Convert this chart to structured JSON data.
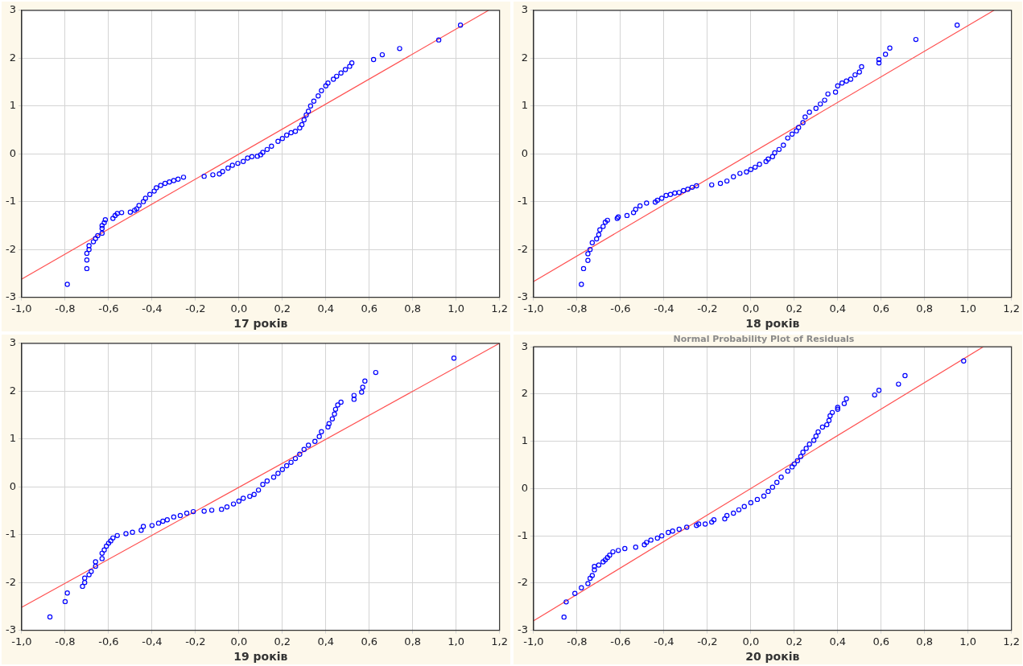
{
  "chart_data": [
    {
      "type": "scatter",
      "xlabel": "17 років",
      "xlim": [
        -1.0,
        1.2
      ],
      "xticks": [
        {
          "value": -1.0,
          "label": "-1,0"
        },
        {
          "value": -0.8,
          "label": "-0,8"
        },
        {
          "value": -0.6,
          "label": "-0,6"
        },
        {
          "value": -0.4,
          "label": "-0,4"
        },
        {
          "value": -0.2,
          "label": "-0,2"
        },
        {
          "value": 0,
          "label": "0,0"
        },
        {
          "value": 0.2,
          "label": "0,2"
        },
        {
          "value": 0.4,
          "label": "0,4"
        },
        {
          "value": 0.6,
          "label": "0,6"
        },
        {
          "value": 0.8,
          "label": "0,8"
        },
        {
          "value": 1.0,
          "label": "1,0"
        },
        {
          "value": 1.2,
          "label": "1,2"
        }
      ],
      "ylim": [
        -3,
        3
      ],
      "yticks": [
        -3,
        -2,
        -1,
        0,
        1,
        2,
        3
      ],
      "grid": true,
      "marker": "circle",
      "series": [
        {
          "type": "scatter",
          "color": "#0000ff",
          "x": [
            -0.79,
            -0.7,
            -0.7,
            -0.7,
            -0.69,
            -0.69,
            -0.67,
            -0.66,
            -0.65,
            -0.63,
            -0.63,
            -0.63,
            -0.62,
            -0.615,
            -0.58,
            -0.57,
            -0.56,
            -0.54,
            -0.5,
            -0.48,
            -0.47,
            -0.46,
            -0.44,
            -0.43,
            -0.41,
            -0.39,
            -0.38,
            -0.36,
            -0.34,
            -0.32,
            -0.3,
            -0.28,
            -0.255,
            -0.16,
            -0.12,
            -0.09,
            -0.075,
            -0.05,
            -0.03,
            -0.005,
            0.02,
            0.04,
            0.06,
            0.085,
            0.1,
            0.11,
            0.13,
            0.15,
            0.18,
            0.2,
            0.22,
            0.24,
            0.26,
            0.28,
            0.29,
            0.3,
            0.31,
            0.32,
            0.33,
            0.345,
            0.365,
            0.38,
            0.4,
            0.41,
            0.435,
            0.45,
            0.47,
            0.49,
            0.51,
            0.52,
            0.62,
            0.66,
            0.74,
            0.92,
            1.02
          ],
          "values": [
            -2.73,
            -2.4,
            -2.22,
            -2.08,
            -2.0,
            -1.92,
            -1.84,
            -1.77,
            -1.71,
            -1.66,
            -1.56,
            -1.5,
            -1.44,
            -1.38,
            -1.35,
            -1.29,
            -1.25,
            -1.23,
            -1.22,
            -1.18,
            -1.15,
            -1.08,
            -1.0,
            -0.93,
            -0.85,
            -0.78,
            -0.71,
            -0.66,
            -0.62,
            -0.59,
            -0.56,
            -0.53,
            -0.49,
            -0.47,
            -0.44,
            -0.42,
            -0.37,
            -0.3,
            -0.24,
            -0.2,
            -0.16,
            -0.09,
            -0.06,
            -0.05,
            -0.02,
            0.03,
            0.09,
            0.16,
            0.26,
            0.32,
            0.39,
            0.44,
            0.47,
            0.54,
            0.61,
            0.71,
            0.81,
            0.89,
            1.0,
            1.1,
            1.21,
            1.32,
            1.42,
            1.48,
            1.56,
            1.62,
            1.69,
            1.76,
            1.83,
            1.9,
            1.97,
            2.07,
            2.2,
            2.38,
            2.69
          ]
        },
        {
          "type": "line",
          "marker": "none",
          "color": "#ff5050",
          "x": [
            -1.0,
            1.15
          ],
          "values": [
            -2.62,
            3.0
          ]
        }
      ]
    },
    {
      "type": "scatter",
      "xlabel": "18 років",
      "xlim": [
        -1.0,
        1.2
      ],
      "xticks": [
        {
          "value": -1.0,
          "label": "-1,0"
        },
        {
          "value": -0.8,
          "label": "-0,8"
        },
        {
          "value": -0.6,
          "label": "-0,6"
        },
        {
          "value": -0.4,
          "label": "-0,4"
        },
        {
          "value": -0.2,
          "label": "-0,2"
        },
        {
          "value": 0,
          "label": "0,0"
        },
        {
          "value": 0.2,
          "label": "0,2"
        },
        {
          "value": 0.4,
          "label": "0,4"
        },
        {
          "value": 0.6,
          "label": "0,6"
        },
        {
          "value": 0.8,
          "label": "0,8"
        },
        {
          "value": 1.0,
          "label": "1,0"
        },
        {
          "value": 1.2,
          "label": "1,2"
        }
      ],
      "ylim": [
        -3,
        3
      ],
      "yticks": [
        -3,
        -2,
        -1,
        0,
        1,
        2,
        3
      ],
      "grid": true,
      "marker": "circle",
      "series": [
        {
          "type": "scatter",
          "color": "#0000ff",
          "x": [
            -0.78,
            -0.77,
            -0.75,
            -0.75,
            -0.74,
            -0.73,
            -0.71,
            -0.7,
            -0.695,
            -0.68,
            -0.67,
            -0.66,
            -0.615,
            -0.61,
            -0.57,
            -0.54,
            -0.53,
            -0.51,
            -0.48,
            -0.44,
            -0.43,
            -0.41,
            -0.39,
            -0.37,
            -0.35,
            -0.33,
            -0.31,
            -0.29,
            -0.27,
            -0.25,
            -0.18,
            -0.14,
            -0.11,
            -0.08,
            -0.05,
            -0.02,
            0.0,
            0.02,
            0.04,
            0.07,
            0.08,
            0.1,
            0.11,
            0.13,
            0.15,
            0.17,
            0.19,
            0.21,
            0.22,
            0.24,
            0.25,
            0.27,
            0.3,
            0.32,
            0.34,
            0.355,
            0.39,
            0.4,
            0.42,
            0.44,
            0.46,
            0.48,
            0.5,
            0.51,
            0.59,
            0.59,
            0.62,
            0.64,
            0.76,
            0.95
          ],
          "values": [
            -2.73,
            -2.4,
            -2.23,
            -2.09,
            -2.0,
            -1.86,
            -1.78,
            -1.69,
            -1.59,
            -1.52,
            -1.43,
            -1.39,
            -1.35,
            -1.32,
            -1.29,
            -1.23,
            -1.16,
            -1.09,
            -1.03,
            -1.01,
            -0.97,
            -0.93,
            -0.87,
            -0.85,
            -0.82,
            -0.81,
            -0.77,
            -0.74,
            -0.7,
            -0.67,
            -0.65,
            -0.62,
            -0.57,
            -0.48,
            -0.41,
            -0.38,
            -0.33,
            -0.28,
            -0.22,
            -0.16,
            -0.11,
            -0.06,
            0.02,
            0.09,
            0.18,
            0.33,
            0.41,
            0.48,
            0.55,
            0.65,
            0.77,
            0.87,
            0.95,
            1.04,
            1.12,
            1.25,
            1.29,
            1.42,
            1.48,
            1.52,
            1.56,
            1.65,
            1.71,
            1.82,
            1.9,
            1.97,
            2.08,
            2.21,
            2.39,
            2.69
          ]
        },
        {
          "type": "line",
          "marker": "none",
          "color": "#ff5050",
          "x": [
            -1.0,
            1.12
          ],
          "values": [
            -2.67,
            3.0
          ]
        }
      ]
    },
    {
      "type": "scatter",
      "xlabel": "19 років",
      "xlim": [
        -1.0,
        1.2
      ],
      "xticks": [
        {
          "value": -1.0,
          "label": "-1,0"
        },
        {
          "value": -0.8,
          "label": "-0,8"
        },
        {
          "value": -0.6,
          "label": "-0,6"
        },
        {
          "value": -0.4,
          "label": "-0,4"
        },
        {
          "value": -0.2,
          "label": "-0,2"
        },
        {
          "value": 0,
          "label": "0,0"
        },
        {
          "value": 0.2,
          "label": "0,2"
        },
        {
          "value": 0.4,
          "label": "0,4"
        },
        {
          "value": 0.6,
          "label": "0,6"
        },
        {
          "value": 0.8,
          "label": "0,8"
        },
        {
          "value": 1.0,
          "label": "1,0"
        },
        {
          "value": 1.2,
          "label": "1,2"
        }
      ],
      "ylim": [
        -3,
        3
      ],
      "yticks": [
        -3,
        -2,
        -1,
        0,
        1,
        2,
        3
      ],
      "grid": true,
      "marker": "circle",
      "series": [
        {
          "type": "scatter",
          "color": "#0000ff",
          "x": [
            -0.87,
            -0.8,
            -0.79,
            -0.72,
            -0.71,
            -0.71,
            -0.69,
            -0.68,
            -0.66,
            -0.66,
            -0.63,
            -0.63,
            -0.62,
            -0.61,
            -0.6,
            -0.59,
            -0.58,
            -0.56,
            -0.52,
            -0.49,
            -0.45,
            -0.44,
            -0.4,
            -0.37,
            -0.35,
            -0.33,
            -0.3,
            -0.27,
            -0.24,
            -0.21,
            -0.16,
            -0.125,
            -0.08,
            -0.055,
            -0.025,
            0.0,
            0.02,
            0.05,
            0.07,
            0.09,
            0.11,
            0.13,
            0.16,
            0.18,
            0.2,
            0.22,
            0.24,
            0.26,
            0.28,
            0.3,
            0.32,
            0.35,
            0.37,
            0.38,
            0.41,
            0.415,
            0.43,
            0.44,
            0.445,
            0.455,
            0.47,
            0.53,
            0.53,
            0.565,
            0.57,
            0.58,
            0.63,
            0.99
          ],
          "values": [
            -2.72,
            -2.4,
            -2.22,
            -2.08,
            -2.0,
            -1.91,
            -1.84,
            -1.77,
            -1.66,
            -1.57,
            -1.5,
            -1.39,
            -1.32,
            -1.24,
            -1.18,
            -1.13,
            -1.07,
            -1.02,
            -0.98,
            -0.95,
            -0.91,
            -0.83,
            -0.81,
            -0.76,
            -0.72,
            -0.69,
            -0.63,
            -0.6,
            -0.55,
            -0.52,
            -0.51,
            -0.49,
            -0.47,
            -0.42,
            -0.36,
            -0.3,
            -0.24,
            -0.2,
            -0.16,
            -0.07,
            0.05,
            0.12,
            0.2,
            0.28,
            0.36,
            0.44,
            0.51,
            0.59,
            0.68,
            0.78,
            0.87,
            0.95,
            1.05,
            1.15,
            1.25,
            1.32,
            1.42,
            1.52,
            1.62,
            1.71,
            1.77,
            1.83,
            1.91,
            1.98,
            2.08,
            2.21,
            2.39,
            2.69
          ]
        },
        {
          "type": "line",
          "marker": "none",
          "color": "#ff5050",
          "x": [
            -1.0,
            1.2
          ],
          "values": [
            -2.52,
            3.0
          ]
        }
      ]
    },
    {
      "type": "scatter",
      "title": "Normal Probability Plot of Residuals",
      "xlabel": "20 років",
      "xlim": [
        -1.0,
        1.2
      ],
      "xticks": [
        {
          "value": -1.0,
          "label": "-1,0"
        },
        {
          "value": -0.8,
          "label": "-0,8"
        },
        {
          "value": -0.6,
          "label": "-0,6"
        },
        {
          "value": -0.4,
          "label": "-0,4"
        },
        {
          "value": -0.2,
          "label": "-0,2"
        },
        {
          "value": 0,
          "label": "0,0"
        },
        {
          "value": 0.2,
          "label": "0,2"
        },
        {
          "value": 0.4,
          "label": "0,4"
        },
        {
          "value": 0.6,
          "label": "0,6"
        },
        {
          "value": 0.8,
          "label": "0,8"
        },
        {
          "value": 1.0,
          "label": "1,0"
        },
        {
          "value": 1.2,
          "label": "1,2"
        }
      ],
      "ylim": [
        -3,
        3
      ],
      "yticks": [
        -3,
        -2,
        -1,
        0,
        1,
        2,
        3
      ],
      "grid": true,
      "marker": "circle",
      "series": [
        {
          "type": "scatter",
          "color": "#0000ff",
          "x": [
            -0.86,
            -0.85,
            -0.81,
            -0.78,
            -0.75,
            -0.74,
            -0.73,
            -0.72,
            -0.72,
            -0.7,
            -0.68,
            -0.67,
            -0.66,
            -0.65,
            -0.635,
            -0.61,
            -0.58,
            -0.53,
            -0.49,
            -0.48,
            -0.46,
            -0.43,
            -0.41,
            -0.38,
            -0.36,
            -0.33,
            -0.295,
            -0.25,
            -0.24,
            -0.21,
            -0.18,
            -0.17,
            -0.12,
            -0.11,
            -0.08,
            -0.055,
            -0.03,
            0.0,
            0.03,
            0.06,
            0.08,
            0.1,
            0.12,
            0.14,
            0.17,
            0.19,
            0.2,
            0.215,
            0.23,
            0.24,
            0.255,
            0.27,
            0.29,
            0.3,
            0.31,
            0.33,
            0.35,
            0.36,
            0.365,
            0.375,
            0.4,
            0.4,
            0.43,
            0.44,
            0.57,
            0.59,
            0.68,
            0.71,
            0.98
          ],
          "values": [
            -2.72,
            -2.4,
            -2.22,
            -2.1,
            -2.01,
            -1.9,
            -1.84,
            -1.72,
            -1.65,
            -1.62,
            -1.55,
            -1.51,
            -1.46,
            -1.41,
            -1.34,
            -1.31,
            -1.27,
            -1.24,
            -1.19,
            -1.14,
            -1.09,
            -1.05,
            -1.0,
            -0.93,
            -0.9,
            -0.86,
            -0.82,
            -0.78,
            -0.75,
            -0.75,
            -0.71,
            -0.66,
            -0.64,
            -0.57,
            -0.52,
            -0.45,
            -0.38,
            -0.3,
            -0.23,
            -0.16,
            -0.06,
            0.03,
            0.13,
            0.24,
            0.37,
            0.46,
            0.52,
            0.59,
            0.68,
            0.77,
            0.85,
            0.94,
            1.02,
            1.11,
            1.2,
            1.3,
            1.35,
            1.44,
            1.54,
            1.61,
            1.68,
            1.72,
            1.8,
            1.9,
            1.98,
            2.08,
            2.21,
            2.39,
            2.7
          ]
        },
        {
          "type": "line",
          "marker": "none",
          "color": "#ff5050",
          "x": [
            -1.0,
            1.07
          ],
          "values": [
            -2.8,
            3.0
          ]
        }
      ]
    }
  ]
}
